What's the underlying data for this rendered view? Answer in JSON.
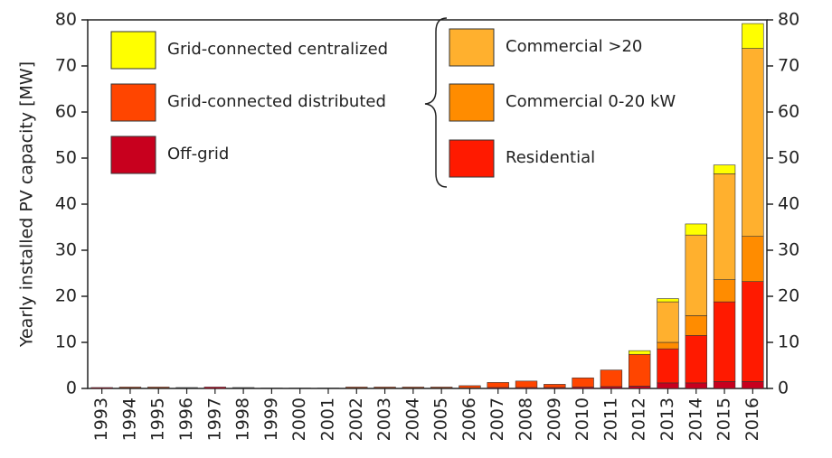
{
  "chart_data": {
    "type": "stacked-bar",
    "y_label": "Yearly installed PV capacity [MW]",
    "categories": [
      "1993",
      "1994",
      "1995",
      "1996",
      "1997",
      "1998",
      "1999",
      "2000",
      "2001",
      "2002",
      "2003",
      "2004",
      "2005",
      "2006",
      "2007",
      "2008",
      "2009",
      "2010",
      "2011",
      "2012",
      "2013",
      "2014",
      "2015",
      "2016"
    ],
    "series": [
      {
        "name": "Off-grid",
        "color": "#c8001e",
        "values": [
          0.2,
          0.1,
          0.1,
          0.1,
          0.3,
          0.1,
          0.1,
          0.1,
          0.1,
          0.1,
          0.1,
          0.1,
          0.1,
          0.1,
          0.2,
          0.2,
          0.2,
          0.3,
          0.4,
          0.5,
          1.2,
          1.2,
          1.5,
          1.5
        ]
      },
      {
        "name": "Grid-connected distributed",
        "color": "#ff4500",
        "values": [
          0,
          0.2,
          0.2,
          0.1,
          0,
          0.1,
          0,
          0,
          0,
          0.2,
          0.2,
          0.2,
          0.2,
          0.5,
          1.1,
          1.4,
          0.7,
          2.0,
          3.6,
          6.9,
          0,
          0,
          0,
          0
        ]
      },
      {
        "name": "Residential",
        "color": "#ff1a00",
        "values": [
          0,
          0,
          0,
          0,
          0,
          0,
          0,
          0,
          0,
          0,
          0,
          0,
          0,
          0,
          0,
          0,
          0,
          0,
          0,
          0,
          7.4,
          10.3,
          17.3,
          21.7
        ]
      },
      {
        "name": "Commercial 0-20 kW",
        "color": "#ff8c00",
        "values": [
          0,
          0,
          0,
          0,
          0,
          0,
          0,
          0,
          0,
          0,
          0,
          0,
          0,
          0,
          0,
          0,
          0,
          0,
          0,
          0,
          1.4,
          4.3,
          4.8,
          9.8
        ]
      },
      {
        "name": "Commercial >20",
        "color": "#ffb02e",
        "values": [
          0,
          0,
          0,
          0,
          0,
          0,
          0,
          0,
          0,
          0,
          0,
          0,
          0,
          0,
          0,
          0,
          0,
          0,
          0,
          0,
          8.8,
          17.5,
          23.0,
          40.8
        ]
      },
      {
        "name": "Grid-connected centralized",
        "color": "#ffff00",
        "values": [
          0,
          0,
          0,
          0,
          0,
          0,
          0,
          0,
          0,
          0,
          0,
          0,
          0,
          0,
          0,
          0,
          0,
          0,
          0,
          0.8,
          0.7,
          2.4,
          1.9,
          5.4
        ]
      }
    ],
    "ylim": [
      0,
      80
    ],
    "yticks": [
      0,
      10,
      20,
      30,
      40,
      50,
      60,
      70,
      80
    ]
  }
}
